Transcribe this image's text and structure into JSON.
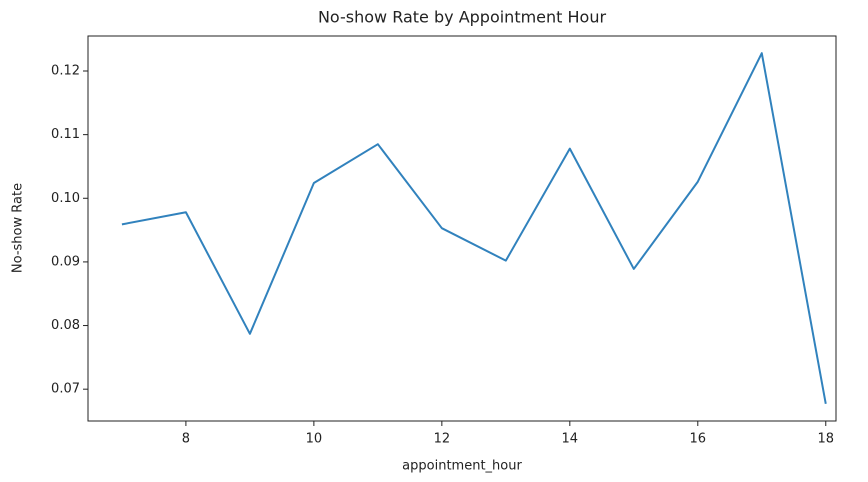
{
  "chart_data": {
    "type": "line",
    "title": "No-show Rate by Appointment Hour",
    "x_label": "appointment_hour",
    "y_label": "No-show Rate",
    "x": [
      7,
      8,
      9,
      10,
      11,
      12,
      13,
      14,
      15,
      16,
      17,
      18
    ],
    "series": [
      {
        "name": "No-show Rate",
        "color": "#3182bd",
        "values": [
          0.0959,
          0.0978,
          0.0787,
          0.1024,
          0.1085,
          0.0953,
          0.0902,
          0.1078,
          0.0889,
          0.1026,
          0.1228,
          0.0677
        ]
      }
    ],
    "xlim": [
      6.47,
      18.16
    ],
    "xticks": [
      8,
      10,
      12,
      14,
      16,
      18
    ],
    "ylim": [
      0.065,
      0.1255
    ],
    "yticks": [
      0.07,
      0.08,
      0.09,
      {
        "value": 0.1,
        "label": "0.10"
      },
      0.11,
      0.12
    ],
    "grid": false
  }
}
